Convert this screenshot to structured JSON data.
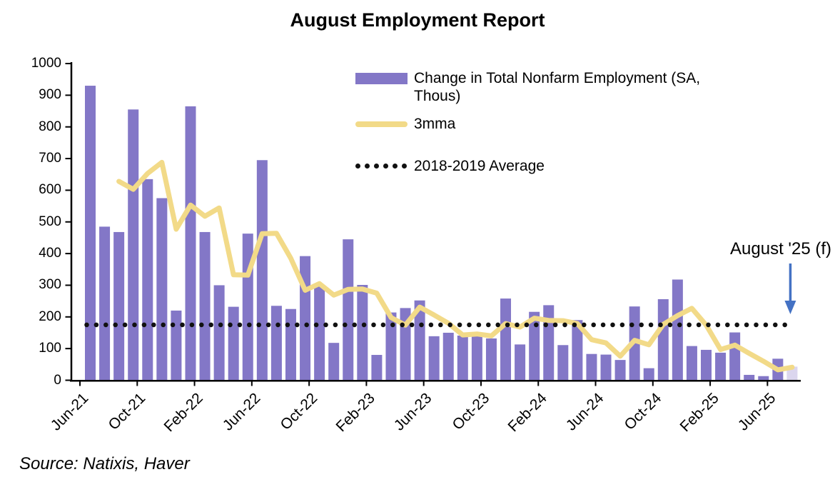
{
  "source": "Source: Natixis, Haver",
  "legend": {
    "bar_label": "Change in Total Nonfarm Employment (SA, Thous)",
    "line_label": "3mma",
    "avg_label": "2018-2019 Average"
  },
  "chart_data": {
    "type": "bar",
    "title": "August Employment Report",
    "xlabel": "",
    "ylabel": "",
    "ylim": [
      0,
      1000
    ],
    "ytick_step": 100,
    "grid": false,
    "legend_position": "top-center-inside",
    "x_tick_labels": [
      "Jun-21",
      "Oct-21",
      "Feb-22",
      "Jun-22",
      "Oct-22",
      "Feb-23",
      "Jun-23",
      "Oct-23",
      "Feb-24",
      "Jun-24",
      "Oct-24",
      "Feb-25",
      "Jun-25"
    ],
    "categories": [
      "Jul-21",
      "Aug-21",
      "Sep-21",
      "Oct-21",
      "Nov-21",
      "Dec-21",
      "Jan-22",
      "Feb-22",
      "Mar-22",
      "Apr-22",
      "May-22",
      "Jun-22",
      "Jul-22",
      "Aug-22",
      "Sep-22",
      "Oct-22",
      "Nov-22",
      "Dec-22",
      "Jan-23",
      "Feb-23",
      "Mar-23",
      "Apr-23",
      "May-23",
      "Jun-23",
      "Jul-23",
      "Aug-23",
      "Sep-23",
      "Oct-23",
      "Nov-23",
      "Dec-23",
      "Jan-24",
      "Feb-24",
      "Mar-24",
      "Apr-24",
      "May-24",
      "Jun-24",
      "Jul-24",
      "Aug-24",
      "Sep-24",
      "Oct-24",
      "Nov-24",
      "Dec-24",
      "Jan-25",
      "Feb-25",
      "Mar-25",
      "Apr-25",
      "May-25",
      "Jun-25",
      "Jul-25",
      "Aug-25 (f)"
    ],
    "series": [
      {
        "name": "Change in Total Nonfarm Employment (SA, Thous)",
        "type": "bar",
        "color": "#8377C7",
        "forecast_color": "#DBD6EE",
        "values": [
          930,
          485,
          468,
          855,
          635,
          575,
          220,
          865,
          468,
          300,
          232,
          463,
          695,
          235,
          225,
          392,
          297,
          118,
          445,
          301,
          80,
          214,
          228,
          252,
          139,
          150,
          141,
          148,
          132,
          258,
          113,
          216,
          237,
          111,
          190,
          83,
          81,
          64,
          233,
          38,
          256,
          318,
          108,
          96,
          87,
          151,
          17,
          13,
          68,
          43
        ]
      },
      {
        "name": "3mma",
        "type": "line",
        "color": "#F2DA88",
        "values": [
          null,
          null,
          628,
          603,
          653,
          688,
          477,
          553,
          518,
          544,
          333,
          332,
          463,
          464,
          385,
          284,
          305,
          269,
          287,
          288,
          275,
          198,
          174,
          231,
          206,
          180,
          143,
          146,
          140,
          179,
          168,
          196,
          189,
          188,
          179,
          128,
          118,
          76,
          126,
          112,
          176,
          204,
          227,
          174,
          97,
          111,
          85,
          60,
          33,
          41
        ]
      },
      {
        "name": "2018-2019 Average",
        "type": "dotted-constant",
        "color": "#111111",
        "value": 175
      }
    ],
    "annotation": {
      "text": "August '25 (f)",
      "arrow_color": "#4472C4",
      "target": "Aug-25 (f)"
    }
  }
}
